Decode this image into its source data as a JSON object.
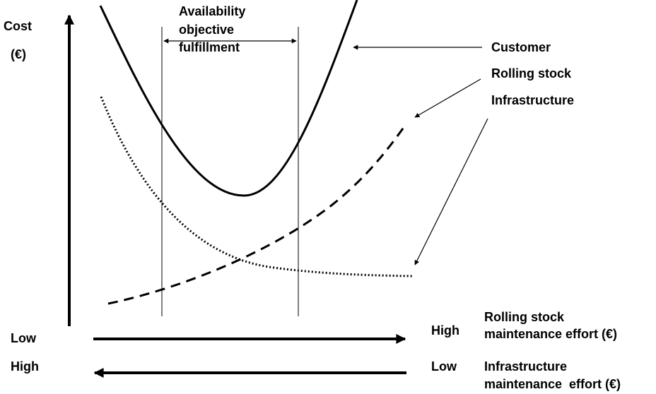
{
  "y_axis": {
    "label": "Cost",
    "unit": "(€)"
  },
  "band": {
    "label_lines": [
      "Availability",
      "objective",
      "fulfillment"
    ]
  },
  "curves": [
    {
      "label": "Customer"
    },
    {
      "label": "Rolling stock"
    },
    {
      "label": "Infrastructure"
    }
  ],
  "x_axes": [
    {
      "start": "Low",
      "end": "High",
      "label_lines": [
        "Rolling stock",
        "maintenance effort (€)"
      ]
    },
    {
      "start": "High",
      "end": "Low",
      "label_lines": [
        "Infrastructure",
        "maintenance  effort (€)"
      ]
    }
  ]
}
